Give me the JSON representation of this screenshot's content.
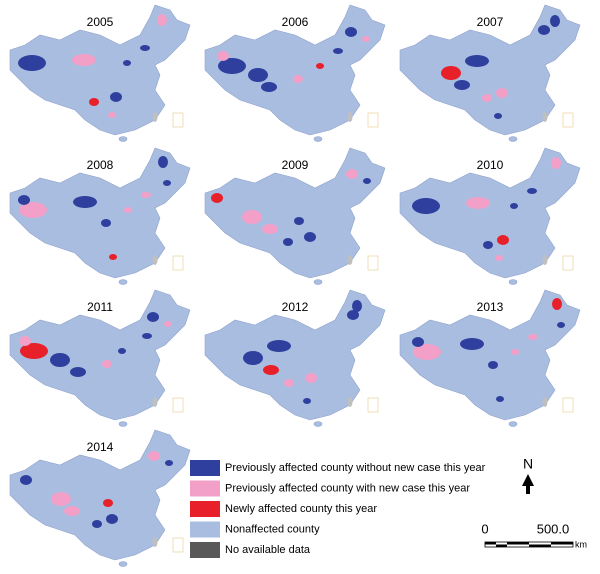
{
  "maps": [
    {
      "year": "2005"
    },
    {
      "year": "2006"
    },
    {
      "year": "2007"
    },
    {
      "year": "2008"
    },
    {
      "year": "2009"
    },
    {
      "year": "2010"
    },
    {
      "year": "2011"
    },
    {
      "year": "2012"
    },
    {
      "year": "2013"
    },
    {
      "year": "2014"
    }
  ],
  "legend": [
    {
      "label": "Previously affected county without new case this year",
      "color": "#2e3f9e"
    },
    {
      "label": "Previously affected county with new case this year",
      "color": "#f2a0c8"
    },
    {
      "label": "Newly affected county this year",
      "color": "#e8202a"
    },
    {
      "label": "Nonaffected county",
      "color": "#a9bde0"
    },
    {
      "label": "No available data",
      "color": "#595959"
    }
  ],
  "north_arrow": "N",
  "scale_bar": {
    "labels": [
      "0",
      "500.0"
    ],
    "unit": "km"
  }
}
